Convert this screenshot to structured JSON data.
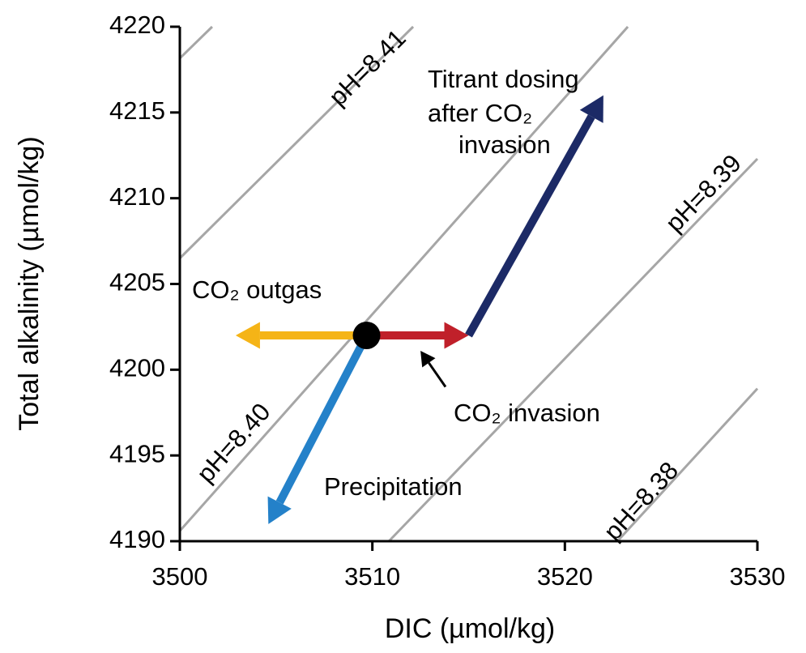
{
  "chart_data": {
    "type": "line",
    "xlabel": "DIC (µmol/kg)",
    "ylabel": "Total alkalinity (µmol/kg)",
    "xlim": [
      3500,
      3530
    ],
    "xticks": [
      3500,
      3510,
      3520,
      3530
    ],
    "ylim": [
      4190,
      4220
    ],
    "yticks": [
      4190,
      4195,
      4200,
      4205,
      4210,
      4215,
      4220
    ],
    "isoline_color": "#a6a6a6",
    "isolines": [
      {
        "x": [
          3500,
          3501.68
        ],
        "values": [
          4218.16,
          4220
        ]
      },
      {
        "label": "pH=8.41",
        "x": [
          3500,
          3512.12
        ],
        "values": [
          4206.5,
          4220
        ]
      },
      {
        "label": "pH=8.40",
        "x": [
          3500,
          3523.27
        ],
        "values": [
          4190.6,
          4220
        ]
      },
      {
        "label": "pH=8.39",
        "x": [
          3510.86,
          3530
        ],
        "values": [
          4190,
          4212.3
        ]
      },
      {
        "label": "pH=8.38",
        "x": [
          3522.73,
          3530
        ],
        "values": [
          4190,
          4198.9
        ]
      }
    ],
    "series": [
      {
        "color": "#f5b417",
        "x": [
          3509.7,
          3502.9
        ],
        "values": [
          4202,
          4202
        ]
      },
      {
        "color": "#c0202a",
        "x": [
          3509.7,
          3515
        ],
        "values": [
          4202,
          4202
        ]
      },
      {
        "color": "#1c2a66",
        "x": [
          3515,
          3522
        ],
        "values": [
          4202,
          4216
        ]
      },
      {
        "color": "#2481c9",
        "x": [
          3509.7,
          3504.6
        ],
        "values": [
          4202,
          4191
        ]
      }
    ],
    "point": {
      "x": 3509.7,
      "y": 4202,
      "color": "#000000"
    },
    "pointer": {
      "x": [
        3513.8,
        3512.5
      ],
      "values": [
        4199.0,
        4201.1
      ]
    },
    "annotations": [
      "CO₂ outgas",
      "CO₂ invasion",
      "Precipitation",
      [
        "Titrant dosing",
        "after CO₂",
        "invasion"
      ]
    ]
  }
}
